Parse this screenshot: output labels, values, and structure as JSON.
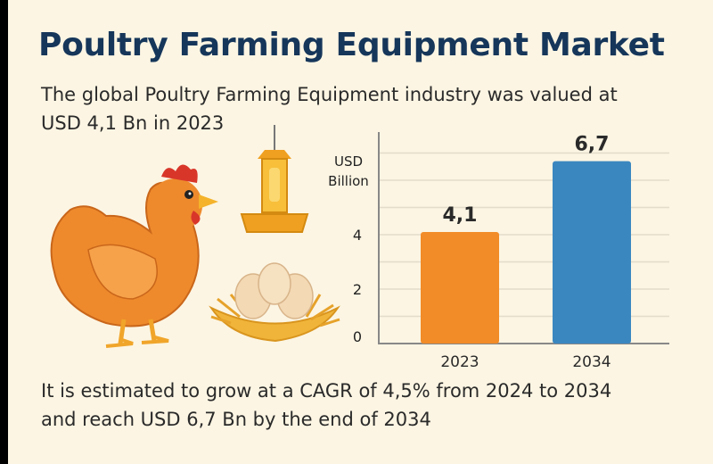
{
  "header": {
    "title": "Poultry Farming Equipment Market",
    "intro_line1": "The global Poultry Farming Equipment industry was valued at",
    "intro_line2": "USD 4,1 Bn in 2023"
  },
  "footer": {
    "line1": "It is estimated to grow at a CAGR of 4,5% from 2024 to 2034",
    "line2": "and reach USD 6,7 Bn by the end of 2034"
  },
  "illustrations": [
    "chicken-icon",
    "feeder-icon",
    "eggs-in-nest-icon"
  ],
  "colors": {
    "background": "#fcf5e3",
    "title": "#16365a",
    "bar_2023": "#f28c28",
    "bar_2034": "#3a87c0"
  },
  "chart_data": {
    "type": "bar",
    "categories": [
      "2023",
      "2034"
    ],
    "values": [
      4.1,
      6.7
    ],
    "value_labels": [
      "4,1",
      "6,7"
    ],
    "ylabel_line1": "USD",
    "ylabel_line2": "Billion",
    "yticks": [
      "0",
      "2",
      "4"
    ],
    "ytick_values": [
      0,
      2,
      4
    ],
    "ylim": [
      0,
      7.5
    ],
    "grid": true,
    "colors": [
      "#f28c28",
      "#3a87c0"
    ]
  }
}
